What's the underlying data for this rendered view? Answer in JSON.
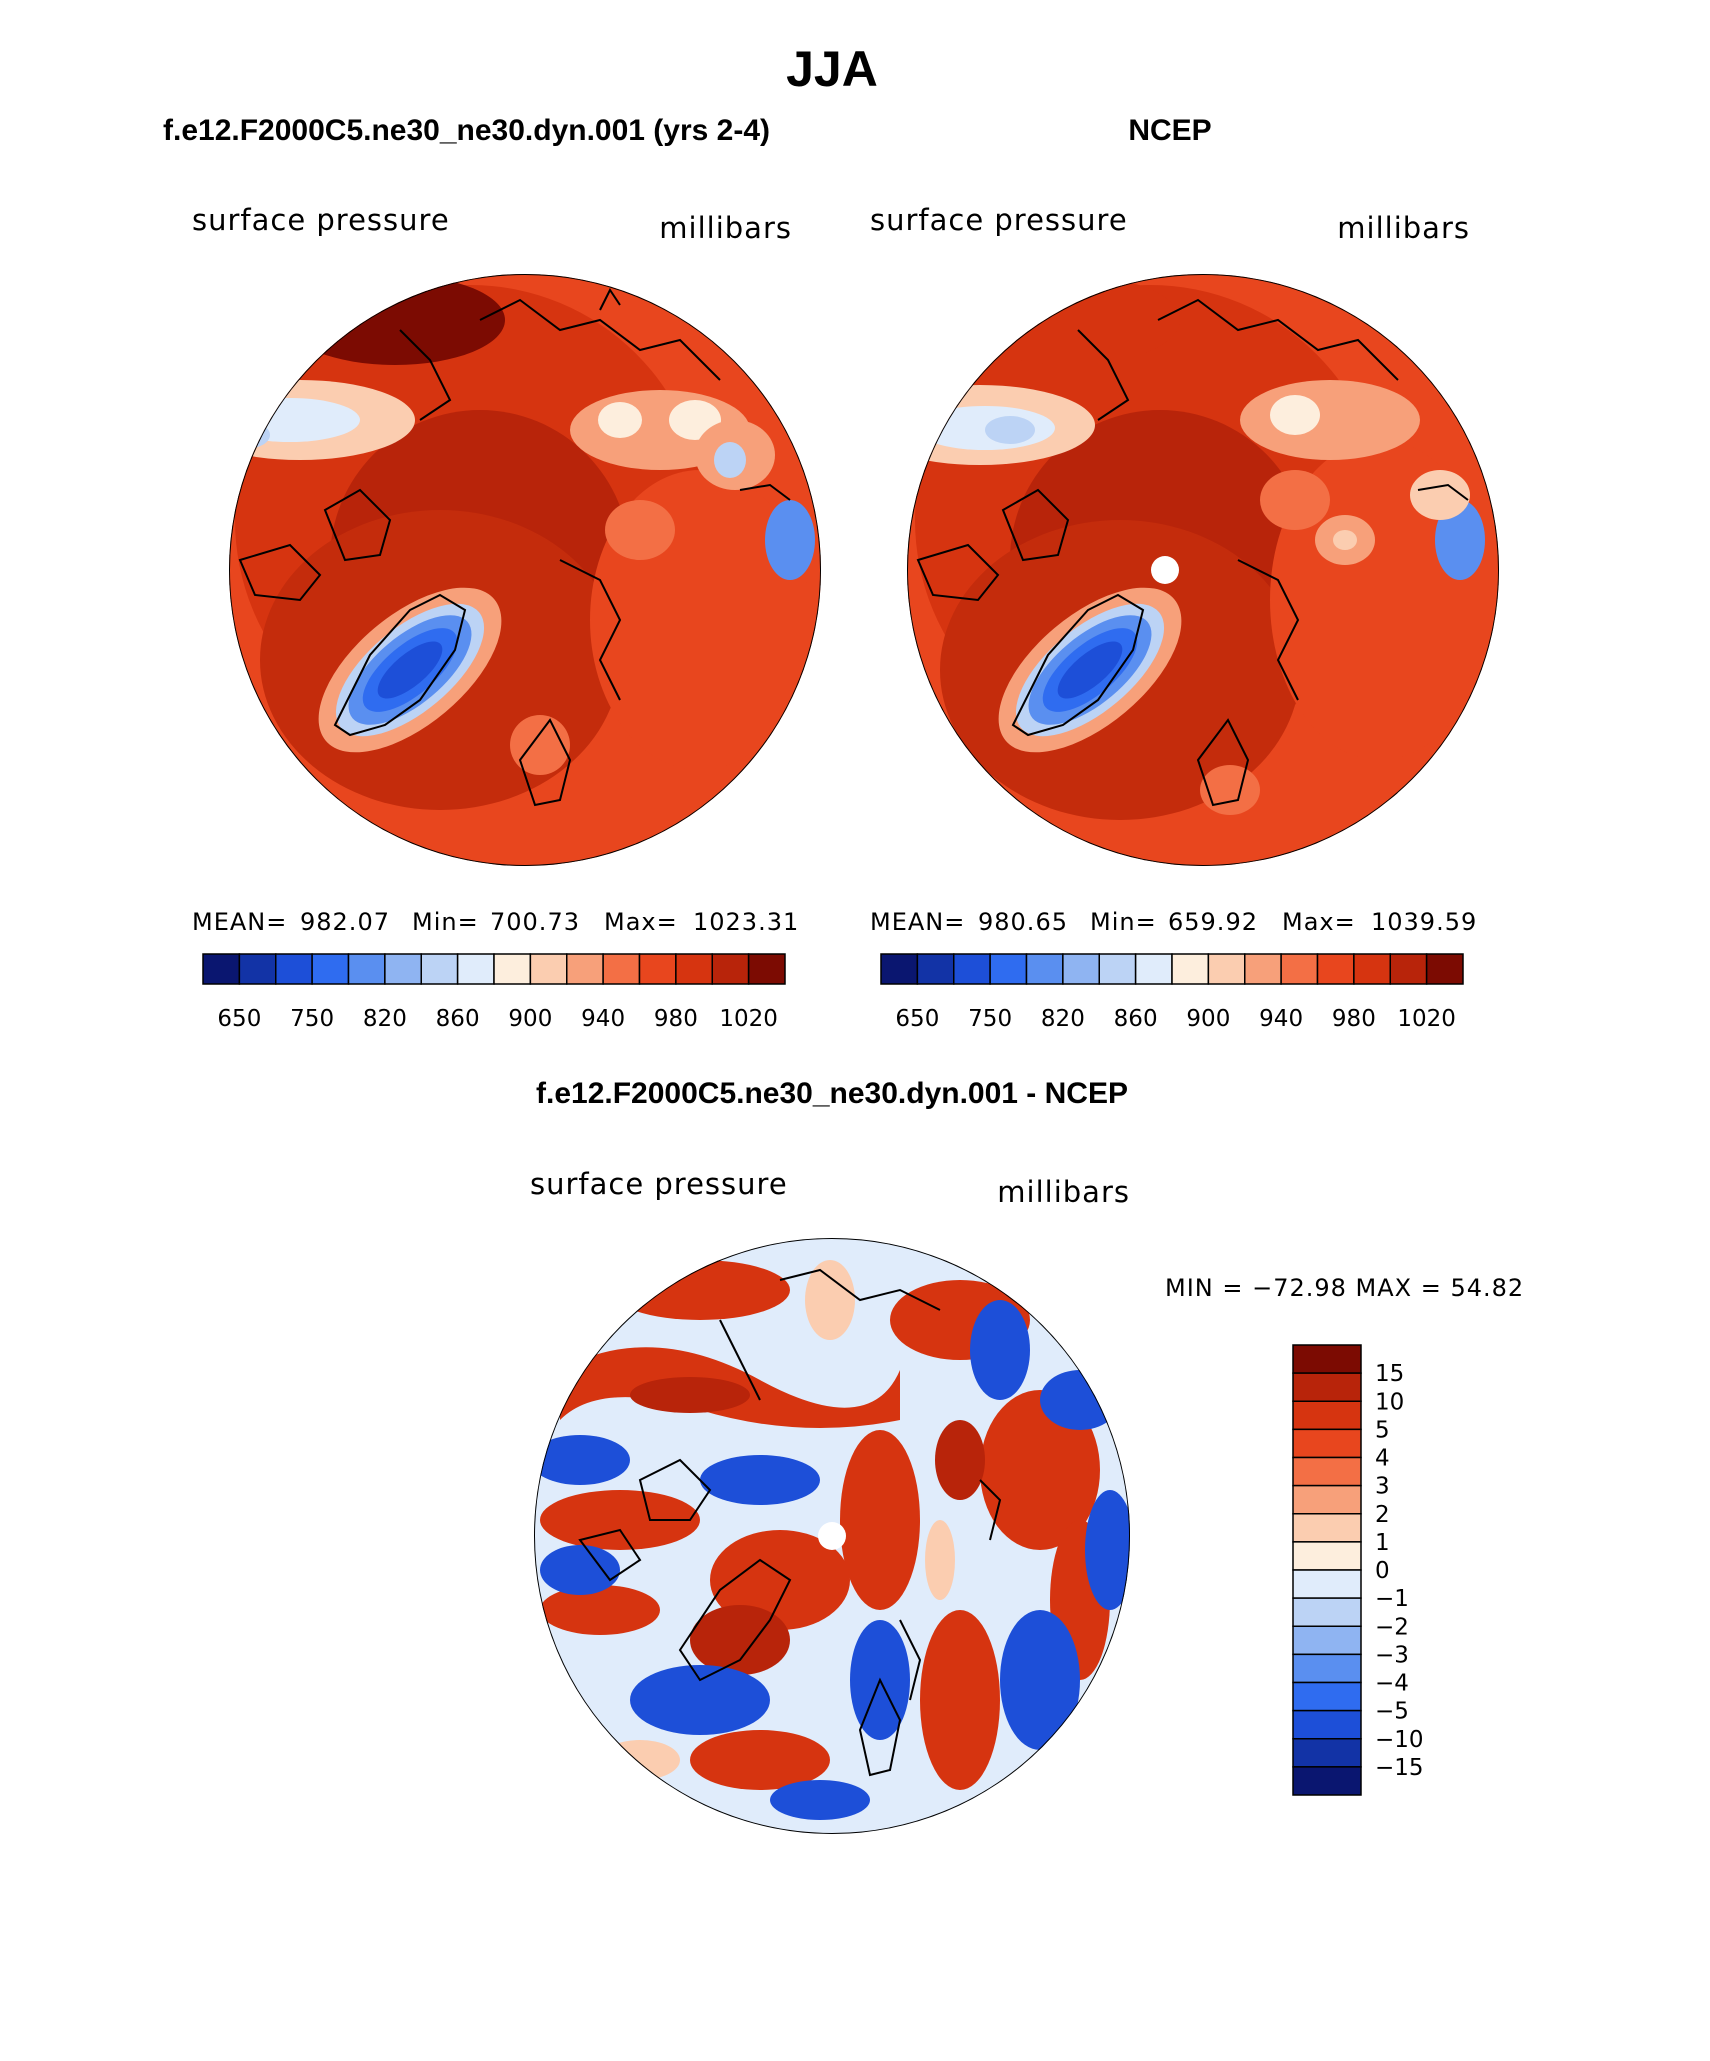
{
  "figure": {
    "title": "JJA"
  },
  "chart_data": [
    {
      "type": "heatmap",
      "projection": "polar-stereographic (north)",
      "panel_title": "f.e12.F2000C5.ne30_ne30.dyn.001 (yrs 2-4)",
      "variable": "surface pressure",
      "units": "millibars",
      "stats": {
        "mean_label": "MEAN=",
        "mean": "982.07",
        "min_label": "Min=",
        "min": "700.73",
        "max_label": "Max=",
        "max": "1023.31"
      },
      "colorbar_ticks": [
        "650",
        "750",
        "820",
        "860",
        "900",
        "940",
        "980",
        "1020"
      ],
      "colors": [
        "#0a1670",
        "#1233a6",
        "#1d4fd8",
        "#2f6cf0",
        "#5a8ff0",
        "#8fb4f2",
        "#bcd3f5",
        "#e0ecfb",
        "#fdeedd",
        "#fbcdb0",
        "#f7a07a",
        "#f36f45",
        "#e8461e",
        "#d63410",
        "#b8240a",
        "#7c0b02"
      ]
    },
    {
      "type": "heatmap",
      "projection": "polar-stereographic (north)",
      "panel_title": "NCEP",
      "variable": "surface pressure",
      "units": "millibars",
      "stats": {
        "mean_label": "MEAN=",
        "mean": "980.65",
        "min_label": "Min=",
        "min": "659.92",
        "max_label": "Max=",
        "max": "1039.59"
      },
      "colorbar_ticks": [
        "650",
        "750",
        "820",
        "860",
        "900",
        "940",
        "980",
        "1020"
      ],
      "colors": [
        "#0a1670",
        "#1233a6",
        "#1d4fd8",
        "#2f6cf0",
        "#5a8ff0",
        "#8fb4f2",
        "#bcd3f5",
        "#e0ecfb",
        "#fdeedd",
        "#fbcdb0",
        "#f7a07a",
        "#f36f45",
        "#e8461e",
        "#d63410",
        "#b8240a",
        "#7c0b02"
      ]
    },
    {
      "type": "heatmap",
      "projection": "polar-stereographic (north)",
      "panel_title": "f.e12.F2000C5.ne30_ne30.dyn.001 - NCEP",
      "variable": "surface pressure",
      "units": "millibars",
      "minmax": "MIN = −72.98 MAX =   54.82",
      "colorbar_ticks": [
        "15",
        "10",
        "5",
        "4",
        "3",
        "2",
        "1",
        "0",
        "−1",
        "−2",
        "−3",
        "−4",
        "−5",
        "−10",
        "−15"
      ],
      "colors": [
        "#7c0b02",
        "#b8240a",
        "#d63410",
        "#e8461e",
        "#f36f45",
        "#f7a07a",
        "#fbcdb0",
        "#fdeedd",
        "#e0ecfb",
        "#bcd3f5",
        "#8fb4f2",
        "#5a8ff0",
        "#2f6cf0",
        "#1d4fd8",
        "#1233a6",
        "#0a1670"
      ]
    }
  ]
}
